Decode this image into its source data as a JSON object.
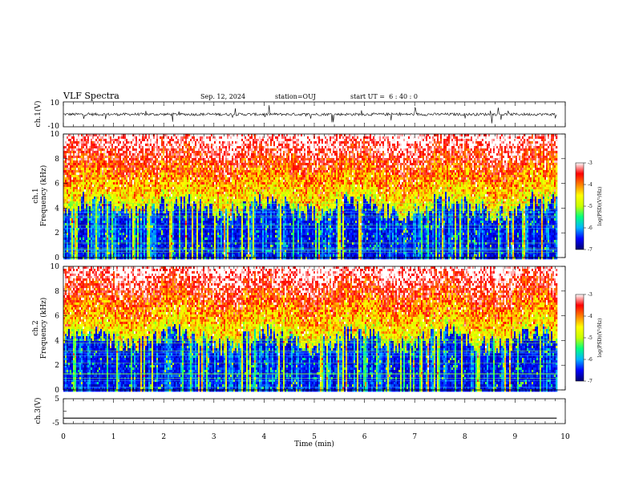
{
  "header": {
    "title": "VLF Spectra",
    "date": "Sep. 12, 2024",
    "station": "station=OUJ",
    "start_ut": "start UT =  6 : 40 : 0"
  },
  "chart_data": [
    {
      "type": "line",
      "panel": "ch1-waveform",
      "ylabel": "ch.1(V)",
      "ylim": [
        -10,
        10
      ],
      "y_ticks": [
        "10",
        "-10"
      ],
      "x_range_min": [
        0,
        9.83
      ],
      "baseline": 0,
      "series_color": "#000000"
    },
    {
      "type": "heatmap",
      "panel": "ch1-spectrogram",
      "ylabel": "ch.1\nFrequency (kHz)",
      "ylabel_top": "ch.1",
      "ylabel_bottom": "Frequency (kHz)",
      "ylim": [
        0,
        10
      ],
      "y_ticks": [
        "0",
        "2",
        "4",
        "6",
        "8",
        "10"
      ],
      "x_range_min": [
        0,
        9.83
      ],
      "colorbar": {
        "label": "log(PSD)(V²/Hz)",
        "range": [
          -7,
          -3
        ],
        "ticks": [
          "-3",
          "-4",
          "-5",
          "-6",
          "-7"
        ],
        "colors": [
          "#000070",
          "#0000ff",
          "#00b4ff",
          "#00ff80",
          "#c8ff00",
          "#ffff00",
          "#ff8000",
          "#ff0000",
          "#ffffff"
        ]
      }
    },
    {
      "type": "heatmap",
      "panel": "ch2-spectrogram",
      "ylabel_top": "ch.2",
      "ylabel_bottom": "Frequency (kHz)",
      "ylim": [
        0,
        10
      ],
      "y_ticks": [
        "0",
        "2",
        "4",
        "6",
        "8",
        "10"
      ],
      "x_range_min": [
        0,
        9.83
      ],
      "colorbar": {
        "label": "log(PSD)(V²/Hz)",
        "range": [
          -7,
          -3
        ],
        "ticks": [
          "-3",
          "-4",
          "-5",
          "-6",
          "-7"
        ],
        "colors": [
          "#000070",
          "#0000ff",
          "#00b4ff",
          "#00ff80",
          "#c8ff00",
          "#ffff00",
          "#ff8000",
          "#ff0000",
          "#ffffff"
        ]
      }
    },
    {
      "type": "line",
      "panel": "ch3-waveform",
      "ylabel": "ch.3(V)",
      "ylim": [
        -5,
        5
      ],
      "y_ticks": [
        "5",
        "-5"
      ],
      "x_range_min": [
        0,
        9.83
      ],
      "values_constant": -2.8,
      "series_color": "#000000"
    }
  ],
  "x_axis": {
    "label": "Time (min)",
    "range": [
      0,
      10
    ],
    "ticks": [
      "0",
      "1",
      "2",
      "3",
      "4",
      "5",
      "6",
      "7",
      "8",
      "9",
      "10"
    ]
  }
}
